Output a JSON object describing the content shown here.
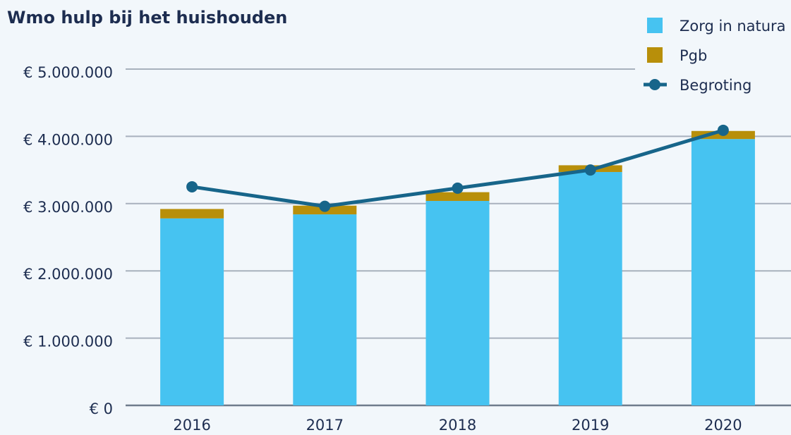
{
  "chart_data": {
    "type": "bar",
    "title": "Wmo hulp bij het huishouden",
    "categories": [
      "2016",
      "2017",
      "2018",
      "2019",
      "2020"
    ],
    "series": [
      {
        "name": "Zorg in natura",
        "color": "#46c3f1",
        "type": "bar",
        "values": [
          2780000,
          2840000,
          3040000,
          3470000,
          3960000
        ]
      },
      {
        "name": "Pgb",
        "color": "#b88f0a",
        "type": "bar",
        "values": [
          140000,
          130000,
          130000,
          100000,
          120000
        ]
      },
      {
        "name": "Begroting",
        "color": "#17658a",
        "type": "line",
        "values": [
          3250000,
          2960000,
          3230000,
          3500000,
          4090000
        ]
      }
    ],
    "stacked": true,
    "ylim": [
      0,
      5000000
    ],
    "yticks": [
      {
        "value": 0,
        "label": "€ 0"
      },
      {
        "value": 1000000,
        "label": "€ 1.000.000"
      },
      {
        "value": 2000000,
        "label": "€ 2.000.000"
      },
      {
        "value": 3000000,
        "label": "€ 3.000.000"
      },
      {
        "value": 4000000,
        "label": "€ 4.000.000"
      },
      {
        "value": 5000000,
        "label": "€ 5.000.000"
      }
    ],
    "grid": true,
    "legend": "top-right"
  }
}
